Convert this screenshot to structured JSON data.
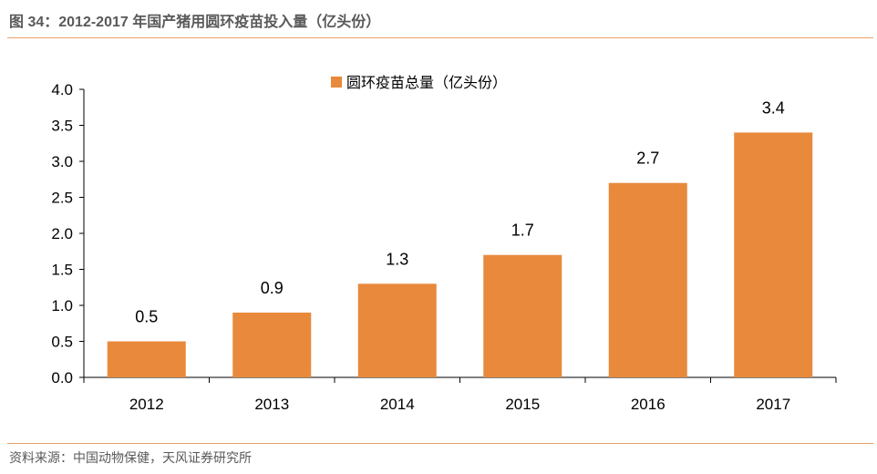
{
  "figure": {
    "title": "图 34：2012-2017 年国产猪用圆环疫苗投入量（亿头份）",
    "source": "资料来源：中国动物保健，天风证券研究所"
  },
  "colors": {
    "bar": "#E8893B",
    "rule": "#E8A06A",
    "axis": "#000000",
    "caption_text": "#595959"
  },
  "chart_data": {
    "type": "bar",
    "categories": [
      "2012",
      "2013",
      "2014",
      "2015",
      "2016",
      "2017"
    ],
    "series": [
      {
        "name": "圆环疫苗总量（亿头份）",
        "values": [
          0.5,
          0.9,
          1.3,
          1.7,
          2.7,
          3.4
        ]
      }
    ],
    "data_labels": [
      "0.5",
      "0.9",
      "1.3",
      "1.7",
      "2.7",
      "3.4"
    ],
    "yticks": [
      "0.0",
      "0.5",
      "1.0",
      "1.5",
      "2.0",
      "2.5",
      "3.0",
      "3.5",
      "4.0"
    ],
    "ylim": [
      0,
      4
    ],
    "grid": false,
    "legend_position": "top-center"
  }
}
